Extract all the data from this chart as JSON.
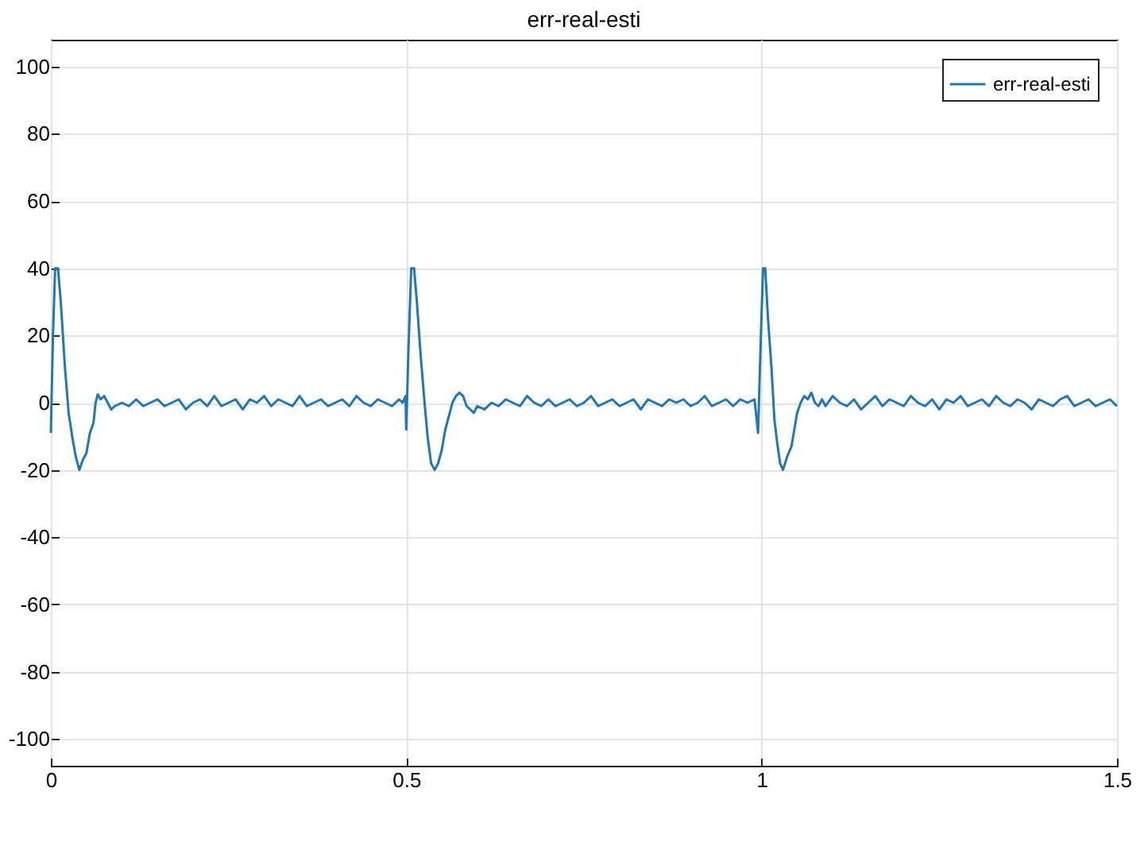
{
  "chart_data": {
    "type": "line",
    "title": "err-real-esti",
    "xlim": [
      0,
      1.5
    ],
    "xticks": [
      0,
      0.5,
      1,
      1.5
    ],
    "ylim": [
      -108,
      108
    ],
    "yticks": [
      -100,
      -80,
      -60,
      -40,
      -20,
      0,
      20,
      40,
      60,
      80,
      100
    ],
    "grid": true,
    "legend": "top right",
    "marker": "none",
    "line_style": "solid",
    "series": [
      {
        "name": "err-real-esti",
        "color": "#1f77b4",
        "x": [
          0,
          0.003,
          0.006,
          0.01,
          0.014,
          0.02,
          0.025,
          0.03,
          0.035,
          0.04,
          0.045,
          0.05,
          0.055,
          0.06,
          0.063,
          0.066,
          0.07,
          0.075,
          0.08,
          0.085,
          0.09,
          0.1,
          0.11,
          0.12,
          0.13,
          0.14,
          0.15,
          0.16,
          0.17,
          0.18,
          0.19,
          0.2,
          0.21,
          0.22,
          0.23,
          0.24,
          0.25,
          0.26,
          0.27,
          0.28,
          0.29,
          0.3,
          0.31,
          0.32,
          0.33,
          0.34,
          0.35,
          0.36,
          0.37,
          0.38,
          0.39,
          0.4,
          0.41,
          0.42,
          0.43,
          0.44,
          0.45,
          0.46,
          0.47,
          0.48,
          0.49,
          0.495,
          0.499,
          0.5,
          0.503,
          0.507,
          0.511,
          0.515,
          0.52,
          0.525,
          0.53,
          0.535,
          0.54,
          0.545,
          0.55,
          0.555,
          0.56,
          0.565,
          0.57,
          0.575,
          0.58,
          0.585,
          0.59,
          0.595,
          0.6,
          0.61,
          0.62,
          0.63,
          0.64,
          0.65,
          0.66,
          0.67,
          0.68,
          0.69,
          0.7,
          0.71,
          0.72,
          0.73,
          0.74,
          0.75,
          0.76,
          0.77,
          0.78,
          0.79,
          0.8,
          0.81,
          0.82,
          0.83,
          0.84,
          0.85,
          0.86,
          0.87,
          0.88,
          0.89,
          0.9,
          0.91,
          0.92,
          0.93,
          0.94,
          0.95,
          0.96,
          0.97,
          0.98,
          0.99,
          0.995,
          0.999,
          1.002,
          1.005,
          1.009,
          1.014,
          1.018,
          1.022,
          1.026,
          1.03,
          1.036,
          1.042,
          1.046,
          1.05,
          1.055,
          1.06,
          1.065,
          1.07,
          1.075,
          1.08,
          1.085,
          1.09,
          1.1,
          1.11,
          1.12,
          1.13,
          1.14,
          1.15,
          1.16,
          1.17,
          1.18,
          1.19,
          1.2,
          1.21,
          1.22,
          1.23,
          1.24,
          1.25,
          1.26,
          1.27,
          1.28,
          1.29,
          1.3,
          1.31,
          1.32,
          1.33,
          1.34,
          1.35,
          1.36,
          1.37,
          1.38,
          1.39,
          1.4,
          1.41,
          1.42,
          1.43,
          1.44,
          1.45,
          1.46,
          1.47,
          1.48,
          1.49,
          1.5
        ],
        "values": [
          -9,
          20,
          40,
          40,
          30,
          10,
          -3,
          -10,
          -16,
          -20,
          -17,
          -15,
          -9,
          -6,
          0,
          2.5,
          1,
          2,
          0,
          -2,
          -1,
          0,
          -1,
          1,
          -1,
          0,
          1,
          -1,
          0,
          1,
          -2,
          0,
          1,
          -1,
          2,
          -1,
          0,
          1,
          -2,
          1,
          0,
          2,
          -1,
          1,
          0,
          -1,
          2,
          -1,
          0,
          1,
          -1,
          0,
          1,
          -1,
          2,
          0,
          -1,
          1,
          0,
          -1,
          1,
          0,
          2,
          -8,
          15,
          40,
          40,
          30,
          15,
          2,
          -10,
          -18,
          -20,
          -18,
          -14,
          -8,
          -4,
          0,
          2,
          3,
          2,
          -1,
          -2,
          -3,
          -1,
          -2,
          0,
          -1,
          1,
          0,
          -1,
          2,
          0,
          -1,
          1,
          -1,
          0,
          1,
          -1,
          0,
          2,
          -1,
          0,
          1,
          -1,
          0,
          1,
          -2,
          1,
          0,
          -1,
          1,
          0,
          1,
          -1,
          0,
          2,
          -1,
          0,
          1,
          -1,
          1,
          0,
          1,
          -9,
          20,
          40,
          40,
          25,
          10,
          -5,
          -12,
          -18,
          -20,
          -16,
          -13,
          -8,
          -3,
          0,
          2,
          1,
          3,
          0,
          -1,
          1,
          -1,
          2,
          0,
          -1,
          1,
          -2,
          0,
          2,
          -1,
          1,
          0,
          -1,
          2,
          0,
          -1,
          1,
          -2,
          1,
          0,
          2,
          -1,
          0,
          1,
          -1,
          2,
          0,
          -1,
          1,
          0,
          -2,
          1,
          0,
          -1,
          1,
          2,
          -1,
          0,
          1,
          -1,
          0,
          1,
          -1
        ]
      }
    ]
  }
}
